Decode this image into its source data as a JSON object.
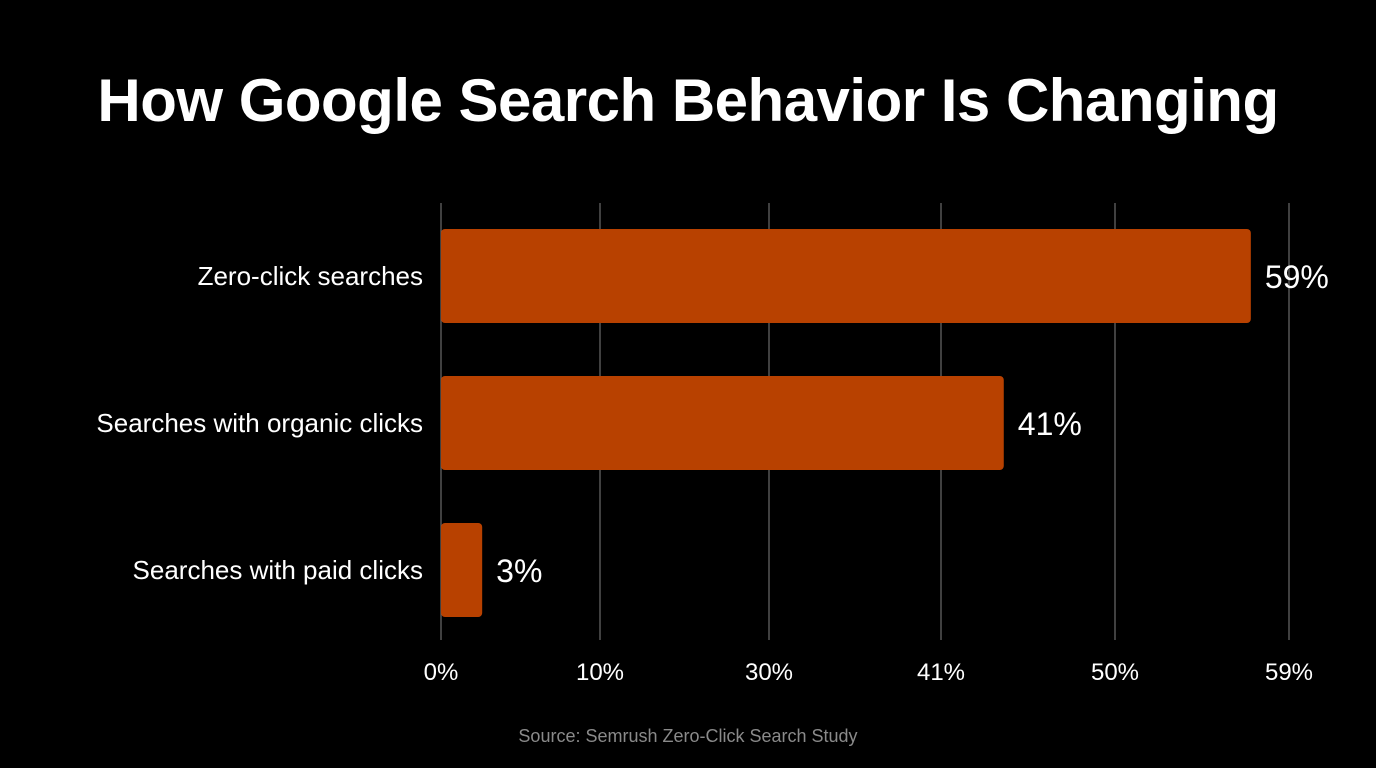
{
  "chart_data": {
    "type": "bar",
    "orientation": "horizontal",
    "title": "How Google Search Behavior Is Changing",
    "categories": [
      "Zero-click searches",
      "Searches with organic clicks",
      "Searches with paid clicks"
    ],
    "values": [
      59,
      41,
      3
    ],
    "value_labels": [
      "59%",
      "41%",
      "3%"
    ],
    "x_ticks": [
      "0%",
      "10%",
      "30%",
      "41%",
      "50%",
      "59%"
    ],
    "xlim": [
      0,
      59
    ],
    "grid": true,
    "bar_color": "#b84100",
    "source": "Source: Semrush Zero-Click Search Study"
  }
}
